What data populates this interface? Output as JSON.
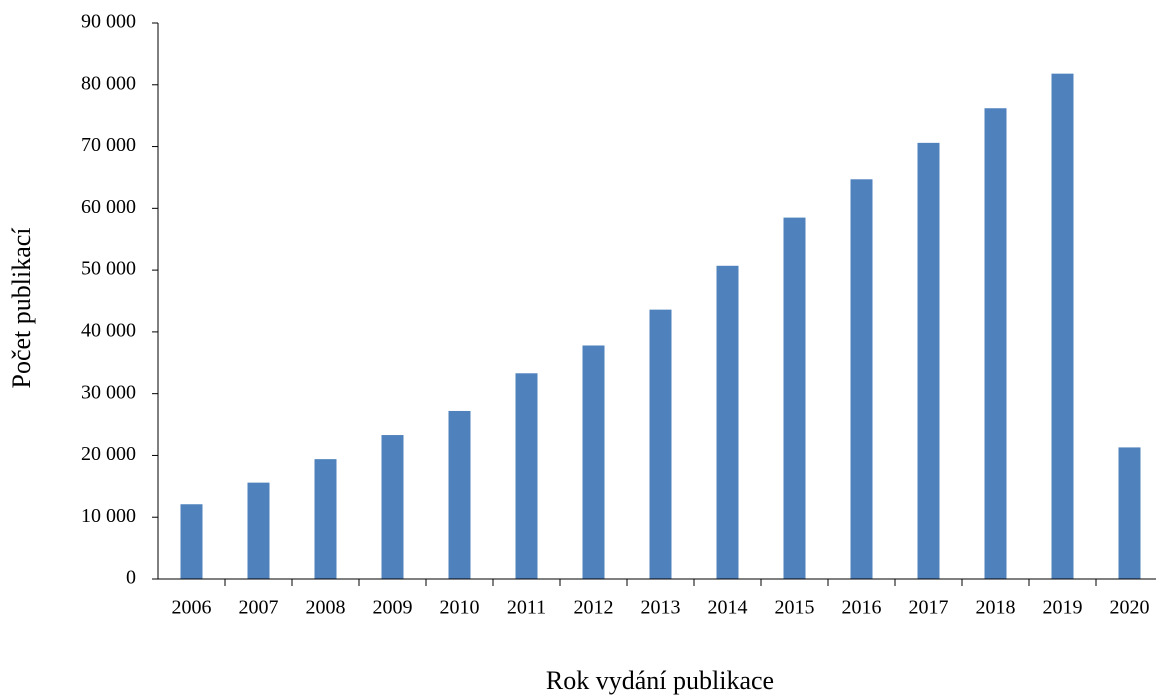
{
  "chart_data": {
    "type": "bar",
    "x_label": "Rok vydání publikace",
    "y_label": "Počet publikací",
    "categories": [
      "2006",
      "2007",
      "2008",
      "2009",
      "2010",
      "2011",
      "2012",
      "2013",
      "2014",
      "2015",
      "2016",
      "2017",
      "2018",
      "2019",
      "2020"
    ],
    "values": [
      12100,
      15600,
      19400,
      23300,
      27200,
      33300,
      37800,
      43600,
      50700,
      58500,
      64700,
      70600,
      76200,
      81800,
      21300
    ],
    "color": "#4f81bd",
    "ylim": [
      0,
      90000
    ],
    "yticks": [
      {
        "value": 0,
        "label": "0"
      },
      {
        "value": 10000,
        "label": "10 000"
      },
      {
        "value": 20000,
        "label": "20 000"
      },
      {
        "value": 30000,
        "label": "30 000"
      },
      {
        "value": 40000,
        "label": "40 000"
      },
      {
        "value": 50000,
        "label": "50 000"
      },
      {
        "value": 60000,
        "label": "60 000"
      },
      {
        "value": 70000,
        "label": "70 000"
      },
      {
        "value": 80000,
        "label": "80 000"
      },
      {
        "value": 90000,
        "label": "90 000"
      }
    ]
  }
}
